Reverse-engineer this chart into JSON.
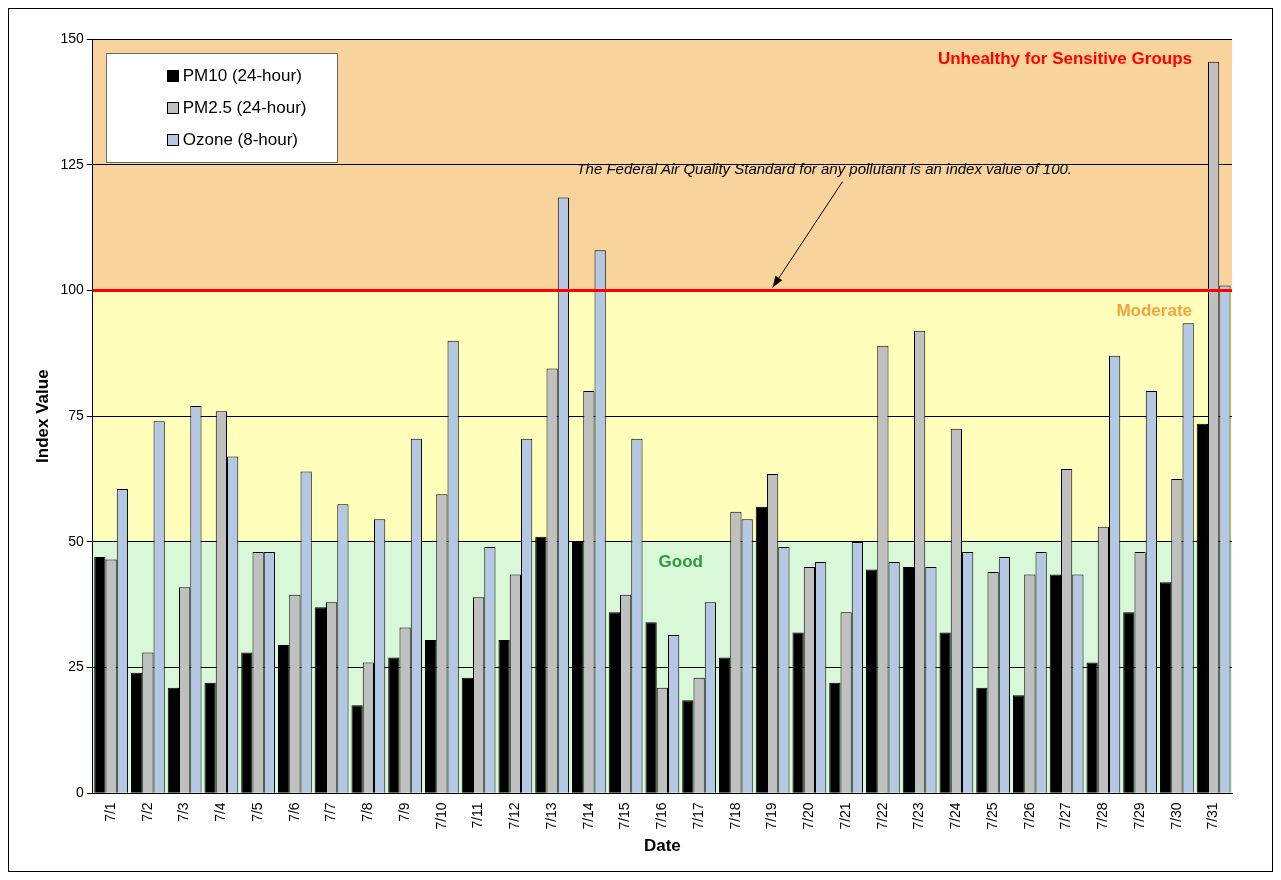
{
  "chart_data": {
    "type": "bar",
    "xlabel": "Date",
    "ylabel": "Index Value",
    "categories": [
      "7/1",
      "7/2",
      "7/3",
      "7/4",
      "7/5",
      "7/6",
      "7/7",
      "7/8",
      "7/9",
      "7/10",
      "7/11",
      "7/12",
      "7/13",
      "7/14",
      "7/15",
      "7/16",
      "7/17",
      "7/18",
      "7/19",
      "7/20",
      "7/21",
      "7/22",
      "7/23",
      "7/24",
      "7/25",
      "7/26",
      "7/27",
      "7/28",
      "7/29",
      "7/30",
      "7/31"
    ],
    "series": [
      {
        "name": "PM10 (24-hour)",
        "color": "#000000",
        "values": [
          47,
          24,
          21,
          22,
          28,
          29.5,
          37,
          17.5,
          27,
          30.5,
          23,
          30.5,
          51,
          50,
          36,
          34,
          18.5,
          27,
          57,
          32,
          22,
          44.5,
          45,
          32,
          21,
          19.5,
          43.5,
          26,
          36,
          42,
          73.5
        ]
      },
      {
        "name": "PM2.5 (24-hour)",
        "color": "#c0c0c0",
        "values": [
          46.5,
          28,
          41,
          76,
          48,
          39.5,
          38,
          26,
          33,
          59.5,
          39,
          43.5,
          84.5,
          80,
          39.5,
          21,
          23,
          56,
          63.5,
          45,
          36,
          89,
          92,
          72.5,
          44,
          43.5,
          64.5,
          53,
          48,
          62.5,
          145.5
        ]
      },
      {
        "name": "Ozone (8-hour)",
        "color": "#b4c8e4",
        "values": [
          60.5,
          74,
          77,
          67,
          48,
          64,
          57.5,
          54.5,
          70.5,
          90,
          49,
          70.5,
          118.5,
          108,
          70.5,
          31.5,
          38,
          54.5,
          49,
          46,
          50,
          46,
          45,
          48,
          47,
          48,
          43.5,
          87,
          80,
          93.5,
          101
        ]
      }
    ],
    "ylim": [
      0,
      150
    ],
    "yticks": [
      0,
      25,
      50,
      75,
      100,
      125,
      150
    ],
    "grid": "y",
    "legend": "top left",
    "bands": [
      {
        "axis": "y",
        "from": 0,
        "to": 50,
        "label": "Good",
        "color": "#d8f8d8"
      },
      {
        "axis": "y",
        "from": 50,
        "to": 100,
        "label": "Moderate",
        "color": "#ffffbb"
      },
      {
        "axis": "y",
        "from": 100,
        "to": 150,
        "label": "Unhealthy for Sensitive Groups",
        "color": "#f8d49c"
      }
    ],
    "ref_lines": [
      {
        "axis": "y",
        "value": 100,
        "color": "#ff0000"
      }
    ],
    "annotations": [
      {
        "text": "The Federal Air Quality Standard for any pollutant is an index value of 100.",
        "x": "7/19",
        "y": 100
      }
    ]
  }
}
